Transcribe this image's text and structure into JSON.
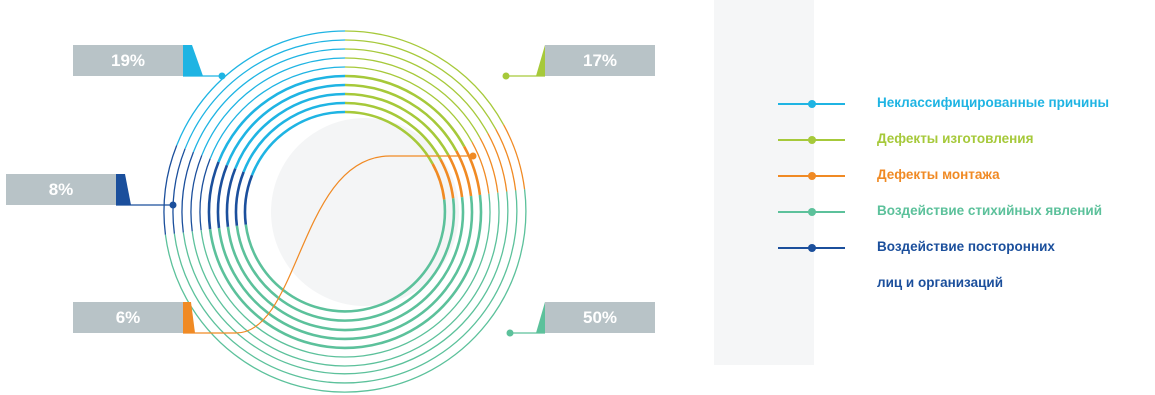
{
  "chart_data": {
    "type": "pie",
    "series": [
      {
        "name": "Неклассифицированные причины",
        "label": "19%",
        "value": 19,
        "color": "#1fb4e3"
      },
      {
        "name": "Дефекты изготовления",
        "label": "17%",
        "value": 17,
        "color": "#a6c93a"
      },
      {
        "name": "Дефекты монтажа",
        "label": "6%",
        "value": 6,
        "color": "#f08a24"
      },
      {
        "name": "Воздействие стихийных явлений",
        "label": "50%",
        "value": 50,
        "color": "#5cc19b"
      },
      {
        "name": "Воздействие посторонних лиц и организаций",
        "label": "8%",
        "value": 8,
        "color": "#1b4f9c"
      }
    ]
  },
  "legend": [
    {
      "label": "Неклассифицированные причины",
      "color": "#1fb4e3"
    },
    {
      "label": "Дефекты изготовления",
      "color": "#a6c93a"
    },
    {
      "label": "Дефекты монтажа",
      "color": "#f08a24"
    },
    {
      "label": "Воздействие стихийных явлений",
      "color": "#5cc19b"
    },
    {
      "label": "Воздействие посторонних",
      "label_line2": "лиц и организаций",
      "color": "#1b4f9c"
    }
  ],
  "callouts": {
    "unclassified": "19%",
    "manufacturing": "17%",
    "external_parties": "8%",
    "installation": "6%",
    "natural": "50%"
  }
}
